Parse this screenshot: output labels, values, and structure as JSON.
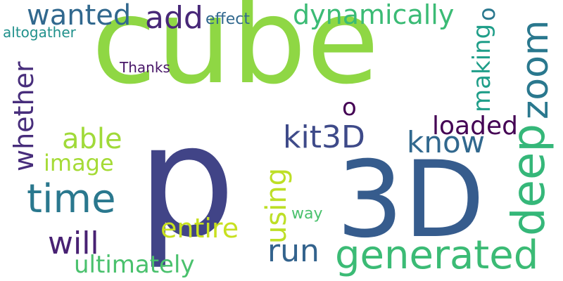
{
  "words": [
    {
      "text": "cube",
      "color": "#8fd744",
      "orientation": "horizontal"
    },
    {
      "text": "p",
      "color": "#414487",
      "orientation": "horizontal"
    },
    {
      "text": "3D",
      "color": "#365c8d",
      "orientation": "horizontal"
    },
    {
      "text": "generated",
      "color": "#3bbb75",
      "orientation": "horizontal"
    },
    {
      "text": "deep",
      "color": "#35b779",
      "orientation": "vertical"
    },
    {
      "text": "zoom",
      "color": "#2a788e",
      "orientation": "vertical"
    },
    {
      "text": "time",
      "color": "#2a788e",
      "orientation": "horizontal"
    },
    {
      "text": "dynamically",
      "color": "#3bbb75",
      "orientation": "horizontal"
    },
    {
      "text": "wanted",
      "color": "#31688e",
      "orientation": "horizontal"
    },
    {
      "text": "add",
      "color": "#482878",
      "orientation": "horizontal"
    },
    {
      "text": "whether",
      "color": "#472d7b",
      "orientation": "vertical"
    },
    {
      "text": "kit3D",
      "color": "#3e4a89",
      "orientation": "horizontal"
    },
    {
      "text": "know",
      "color": "#31688e",
      "orientation": "horizontal"
    },
    {
      "text": "loaded",
      "color": "#440154",
      "orientation": "horizontal"
    },
    {
      "text": "making",
      "color": "#1f9e89",
      "orientation": "vertical"
    },
    {
      "text": "able",
      "color": "#a0da39",
      "orientation": "horizontal"
    },
    {
      "text": "using",
      "color": "#bddf26",
      "orientation": "vertical"
    },
    {
      "text": "entire",
      "color": "#c8e020",
      "orientation": "horizontal"
    },
    {
      "text": "will",
      "color": "#482173",
      "orientation": "horizontal"
    },
    {
      "text": "run",
      "color": "#33638d",
      "orientation": "horizontal"
    },
    {
      "text": "ultimately",
      "color": "#4ac16d",
      "orientation": "horizontal"
    },
    {
      "text": "image",
      "color": "#a5db36",
      "orientation": "horizontal"
    },
    {
      "text": "o",
      "color": "#440154",
      "orientation": "horizontal"
    },
    {
      "text": "o",
      "color": "#2a788e",
      "orientation": "vertical"
    },
    {
      "text": "Thanks",
      "color": "#481668",
      "orientation": "horizontal"
    },
    {
      "text": "effect",
      "color": "#31688e",
      "orientation": "horizontal"
    },
    {
      "text": "altogather",
      "color": "#21918c",
      "orientation": "horizontal"
    },
    {
      "text": "way",
      "color": "#4ac16d",
      "orientation": "horizontal"
    }
  ]
}
